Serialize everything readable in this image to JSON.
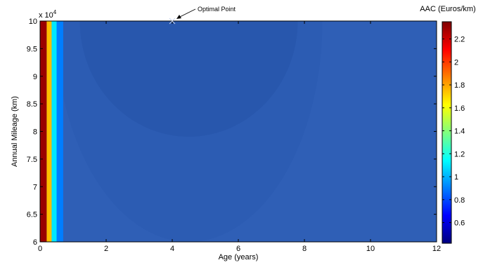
{
  "chart_data": {
    "type": "heatmap",
    "title": "",
    "xlabel": "Age (years)",
    "ylabel": "Annual Mileage (km)",
    "y_multiplier_label": "x 10",
    "y_multiplier_exponent": "4",
    "xlim": [
      0,
      12
    ],
    "ylim": [
      6,
      10
    ],
    "x_ticks": [
      "0",
      "2",
      "4",
      "6",
      "8",
      "10",
      "12"
    ],
    "y_ticks": [
      "6",
      "6.5",
      "7",
      "7.5",
      "8",
      "8.5",
      "9",
      "9.5",
      "10"
    ],
    "colorbar": {
      "title": "AAC (Euros/km)",
      "range": [
        0.42,
        2.35
      ],
      "ticks": [
        "0.6",
        "0.8",
        "1",
        "1.2",
        "1.4",
        "1.6",
        "1.8",
        "2",
        "2.2"
      ],
      "colormap": "jet"
    },
    "approx_values": {
      "age_0_0_to_0_2": 2.3,
      "age_0_2_to_0_35": 1.75,
      "age_0_35_to_0_5": 1.1,
      "age_0_5_to_0_7": 0.9,
      "minimum_region_center_age": 4.5,
      "minimum_value": 0.43,
      "far_region_value": 0.55
    },
    "annotations": [
      {
        "text": "Optimal Point",
        "x": 4,
        "y": 10
      }
    ]
  }
}
